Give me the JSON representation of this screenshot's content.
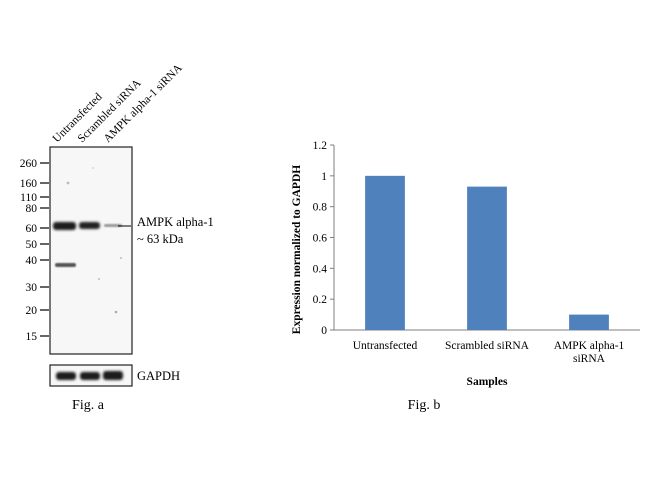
{
  "fig_a": {
    "caption": "Fig. a",
    "lanes": [
      "Untransfected",
      "Scrambled siRNA",
      "AMPK alpha-1 siRNA"
    ],
    "ladder": [
      "260",
      "160",
      "110",
      "80",
      "60",
      "50",
      "40",
      "30",
      "20",
      "15"
    ],
    "band_label": "AMPK alpha-1",
    "band_size": "~ 63 kDa",
    "loading_control": "GAPDH"
  },
  "fig_b": {
    "caption": "Fig. b"
  },
  "chart_data": {
    "type": "bar",
    "categories": [
      "Untransfected",
      "Scrambled siRNA",
      "AMPK alpha-1 siRNA"
    ],
    "category_lines": [
      [
        "Untransfected"
      ],
      [
        "Scrambled siRNA"
      ],
      [
        "AMPK alpha-1",
        "siRNA"
      ]
    ],
    "values": [
      1.0,
      0.93,
      0.1
    ],
    "xlabel": "Samples",
    "ylabel": "Expression normalized to GAPDH",
    "ylim": [
      0,
      1.2
    ],
    "yticks": [
      "0",
      "0.2",
      "0.4",
      "0.6",
      "0.8",
      "1",
      "1.2"
    ],
    "grid": false,
    "bar_color": "#4f81bd"
  }
}
